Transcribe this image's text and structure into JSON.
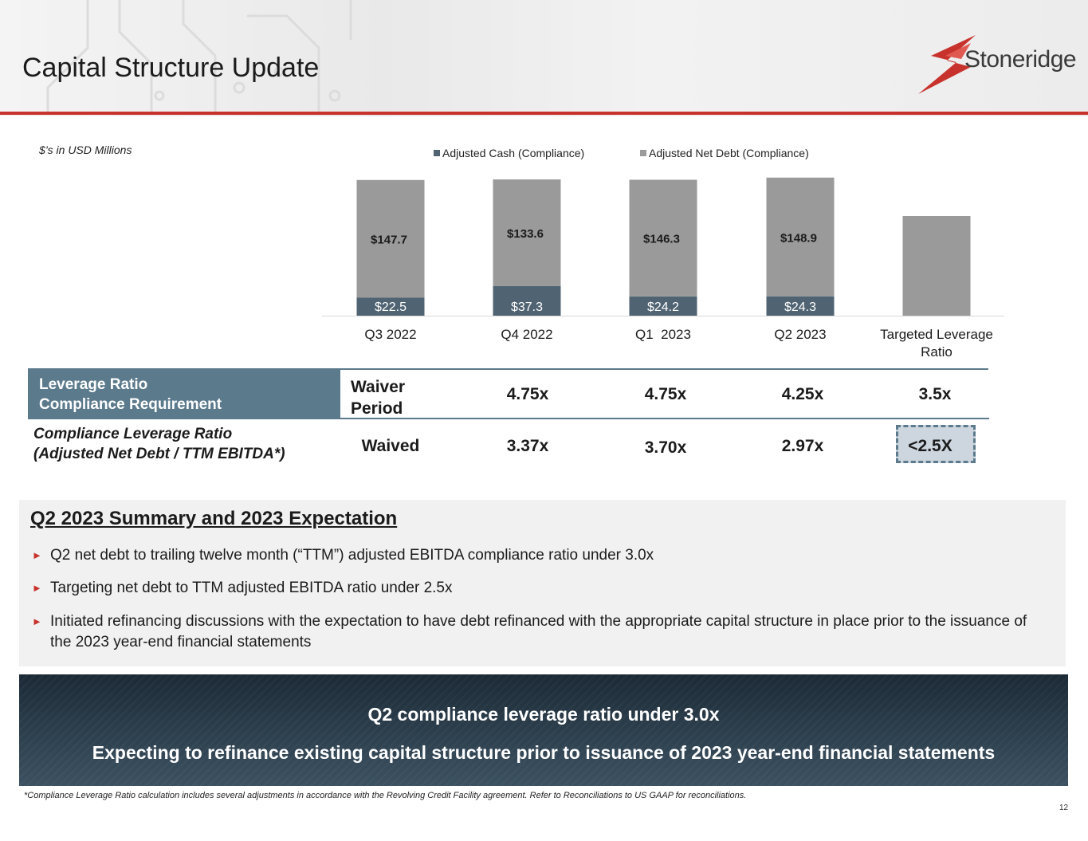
{
  "header": {
    "title": "Capital Structure Update",
    "logo_text": "Stoneridge",
    "accent_color": "#c8322c"
  },
  "units_note": "$’s in USD Millions",
  "chart_data": {
    "type": "bar",
    "stacked": true,
    "categories": [
      "Q3 2022",
      "Q4 2022",
      "Q1  2023",
      "Q2 2023",
      "Targeted Leverage Ratio"
    ],
    "series": [
      {
        "name": "Adjusted Cash (Compliance)",
        "color": "#4f6372",
        "values": [
          22.5,
          37.3,
          24.2,
          24.3,
          null
        ],
        "labels": [
          "$22.5",
          "$37.3",
          "$24.2",
          "$24.3",
          ""
        ]
      },
      {
        "name": "Adjusted Net Debt (Compliance)",
        "color": "#9a9a9a",
        "values": [
          147.7,
          133.6,
          146.3,
          148.9,
          125
        ],
        "labels": [
          "$147.7",
          "$133.6",
          "$146.3",
          "$148.9",
          ""
        ]
      }
    ],
    "legend_position": "top",
    "grid": false
  },
  "table": {
    "row1_label_line1": "Leverage Ratio",
    "row1_label_line2": "Compliance Requirement",
    "row1_values": [
      "Waiver\nPeriod",
      "4.75x",
      "4.75x",
      "4.25x",
      "3.5x"
    ],
    "row2_label_line1": "Compliance Leverage Ratio",
    "row2_label_line2": "(Adjusted Net Debt / TTM EBITDA*)",
    "row2_values": [
      "Waived",
      "3.37x",
      "3.70x",
      "2.97x",
      "<2.5X"
    ]
  },
  "summary": {
    "title": "Q2 2023 Summary and 2023 Expectation",
    "bullets": [
      "Q2 net debt to trailing twelve month (“TTM”) adjusted EBITDA compliance ratio under 3.0x",
      "Targeting net debt to TTM adjusted EBITDA ratio under 2.5x",
      "Initiated refinancing discussions with the expectation to have debt refinanced with the appropriate capital structure in place prior to the issuance of the 2023 year-end financial statements"
    ]
  },
  "banner": {
    "line1": "Q2 compliance leverage ratio under 3.0x",
    "line2": "Expecting to refinance existing capital structure prior to issuance of 2023 year-end financial statements"
  },
  "footnote": "*Compliance Leverage Ratio calculation includes several adjustments in accordance with the Revolving Credit Facility agreement.  Refer to Reconciliations to US GAAP for reconciliations.",
  "page_number": "12"
}
